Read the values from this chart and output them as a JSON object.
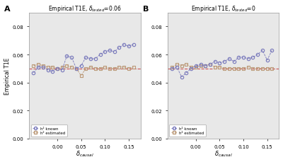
{
  "panel_A": {
    "x_known": [
      -0.05,
      -0.04,
      -0.03,
      -0.02,
      -0.01,
      0.0,
      0.01,
      0.02,
      0.03,
      0.04,
      0.05,
      0.06,
      0.07,
      0.08,
      0.09,
      0.1,
      0.11,
      0.12,
      0.13,
      0.14,
      0.15,
      0.16
    ],
    "y_known": [
      0.047,
      0.051,
      0.051,
      0.049,
      0.048,
      0.05,
      0.049,
      0.059,
      0.058,
      0.05,
      0.052,
      0.058,
      0.057,
      0.057,
      0.06,
      0.062,
      0.063,
      0.062,
      0.065,
      0.067,
      0.066,
      0.067
    ],
    "x_estimated": [
      -0.05,
      -0.04,
      -0.03,
      -0.02,
      -0.01,
      0.0,
      0.01,
      0.02,
      0.03,
      0.04,
      0.05,
      0.06,
      0.07,
      0.08,
      0.09,
      0.1,
      0.11,
      0.12,
      0.13,
      0.14,
      0.15,
      0.16
    ],
    "y_estimated": [
      0.052,
      0.053,
      0.052,
      0.051,
      0.051,
      0.05,
      0.051,
      0.052,
      0.051,
      0.05,
      0.045,
      0.05,
      0.051,
      0.05,
      0.05,
      0.051,
      0.05,
      0.05,
      0.051,
      0.051,
      0.05,
      0.051
    ]
  },
  "panel_B": {
    "x_known": [
      -0.05,
      -0.04,
      -0.03,
      -0.02,
      -0.01,
      0.0,
      0.01,
      0.02,
      0.03,
      0.04,
      0.05,
      0.06,
      0.07,
      0.08,
      0.09,
      0.1,
      0.11,
      0.12,
      0.13,
      0.14,
      0.15,
      0.16
    ],
    "y_known": [
      0.05,
      0.051,
      0.044,
      0.047,
      0.05,
      0.052,
      0.053,
      0.052,
      0.053,
      0.055,
      0.054,
      0.055,
      0.057,
      0.055,
      0.058,
      0.058,
      0.057,
      0.058,
      0.06,
      0.063,
      0.056,
      0.063
    ],
    "x_estimated": [
      -0.05,
      -0.04,
      -0.03,
      -0.02,
      -0.01,
      0.0,
      0.01,
      0.02,
      0.03,
      0.04,
      0.05,
      0.06,
      0.07,
      0.08,
      0.09,
      0.1,
      0.11,
      0.12,
      0.13,
      0.14,
      0.15,
      0.16
    ],
    "y_estimated": [
      0.051,
      0.053,
      0.052,
      0.053,
      0.051,
      0.051,
      0.052,
      0.052,
      0.053,
      0.051,
      0.051,
      0.05,
      0.05,
      0.05,
      0.05,
      0.05,
      0.051,
      0.05,
      0.05,
      0.05,
      0.05,
      0.05
    ]
  },
  "title_A": "Empirical T1E, $\\delta_{tested}$=0.06",
  "title_B": "Empirical T1E, $\\delta_{tested}$=0",
  "ylabel": "Empirical T1E",
  "xlabel": "$\\delta_{causal}$",
  "xlim": [
    -0.06,
    0.175
  ],
  "ylim": [
    0.0,
    0.09
  ],
  "yticks": [
    0.0,
    0.02,
    0.04,
    0.06,
    0.08
  ],
  "xticks": [
    0.0,
    0.05,
    0.1,
    0.15
  ],
  "xtick_labels": [
    "0.00",
    "0.05",
    "0.10",
    "0.15"
  ],
  "hline_y": 0.05,
  "color_known": "#7777bb",
  "color_estimated": "#bb9977",
  "hline_color": "#cc5555",
  "bg_color": "#e8e8e8",
  "legend_label_known": "h² known",
  "legend_label_estimated": "h² estimated"
}
